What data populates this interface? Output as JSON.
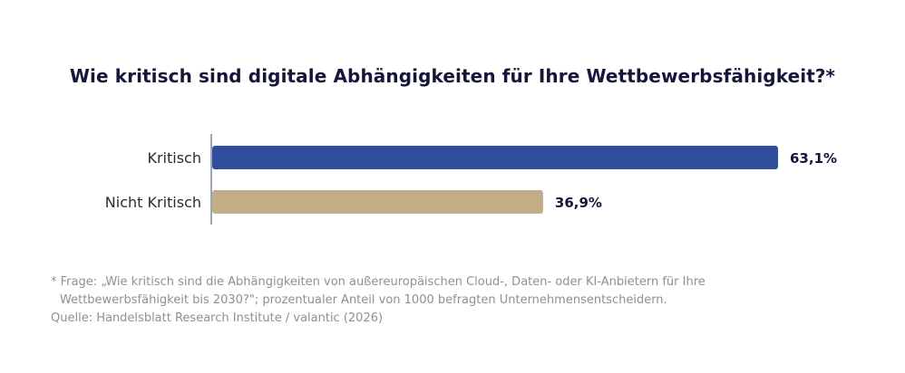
{
  "chart_data": {
    "type": "bar",
    "orientation": "horizontal",
    "title": "Wie kritisch sind digitale Abhängigkeiten für Ihre Wettbewerbsfähigkeit?*",
    "categories": [
      "Kritisch",
      "Nicht Kritisch"
    ],
    "values": [
      63.1,
      36.9
    ],
    "value_labels": [
      "63,1%",
      "36,9%"
    ],
    "colors": [
      "#2f4f9c",
      "#c1ae86"
    ],
    "xlabel": "",
    "ylabel": "",
    "xlim": [
      0,
      100
    ],
    "grid": false,
    "unit": "%"
  },
  "footnotes": {
    "line1": "* Frage: „Wie kritisch sind die Abhängigkeiten von außereuropäischen Cloud-, Daten- oder KI-Anbietern für Ihre",
    "line2": "Wettbewerbsfähigkeit bis 2030?\"; prozentualer Anteil von 1000 befragten Unternehmensentscheidern.",
    "source": "Quelle: Handelsblatt Research Institute / valantic (2026)"
  }
}
